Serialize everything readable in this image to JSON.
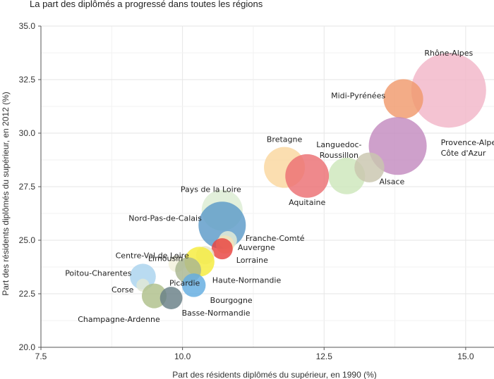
{
  "chart_data": {
    "type": "scatter",
    "title": "La part des diplômés a progressé dans toutes les régions",
    "xlabel": "Part des résidents diplômés du supérieur, en 1990 (%)",
    "ylabel": "Part des résidents diplômés du supérieur, en 2012 (%)",
    "xlim": [
      7.5,
      15.5
    ],
    "ylim": [
      20.0,
      35.0
    ],
    "xticks": [
      "7.5",
      "10.0",
      "12.5",
      "15.0"
    ],
    "yticks": [
      "20.0",
      "22.5",
      "25.0",
      "27.5",
      "30.0",
      "32.5",
      "35.0"
    ],
    "grid": true,
    "highlight_color": "#d62728",
    "points": [
      {
        "name": "Rhône-Alpes",
        "x": 14.7,
        "y": 32.0,
        "size": 100,
        "color": "#f1b6c8"
      },
      {
        "name": "Midi-Pyrénées",
        "x": 13.9,
        "y": 31.6,
        "size": 28,
        "color": "#f09a6c"
      },
      {
        "name": "Provence-Alpes-Côte d'Azur",
        "label_lines": [
          "Provence-Alpes-",
          "Côte d'Azur"
        ],
        "x": 13.8,
        "y": 29.4,
        "size": 60,
        "color": "#c38bbf"
      },
      {
        "name": "Languedoc-Roussillon",
        "label_lines": [
          "Languedoc-",
          "Roussillon"
        ],
        "x": 12.9,
        "y": 28.0,
        "size": 24,
        "color": "#cde6bb"
      },
      {
        "name": "Alsace",
        "x": 13.3,
        "y": 28.4,
        "size": 16,
        "color": "#c9c6ae"
      },
      {
        "name": "Bretagne",
        "x": 11.8,
        "y": 28.4,
        "size": 30,
        "color": "#fad79f"
      },
      {
        "name": "Aquitaine",
        "x": 12.2,
        "y": 28.0,
        "size": 34,
        "color": "#ec6f73"
      },
      {
        "name": "Pays de la Loire",
        "x": 10.7,
        "y": 26.4,
        "size": 30,
        "color": "#dcedd3"
      },
      {
        "name": "Nord-Pas-de-Calais",
        "x": 10.7,
        "y": 25.7,
        "size": 40,
        "color": "#5b9ac8"
      },
      {
        "name": "Franche-Comté",
        "x": 10.8,
        "y": 25.0,
        "size": 6,
        "color": "#e6eed8"
      },
      {
        "name": "Auvergne",
        "x": 10.75,
        "y": 24.8,
        "size": 6,
        "color": "#f4e3b8"
      },
      {
        "name": "Lorraine",
        "x": 10.7,
        "y": 24.6,
        "size": 8,
        "color": "#e8423f",
        "highlight": true
      },
      {
        "name": "Centre-Val de Loire",
        "x": 10.4,
        "y": 24.3,
        "size": 6,
        "color": "#e8e6d0"
      },
      {
        "name": "Limousin",
        "x": 9.9,
        "y": 23.9,
        "size": 5,
        "color": "#f2f0dc"
      },
      {
        "name": "Haute-Normandie",
        "x": 10.3,
        "y": 24.0,
        "size": 16,
        "color": "#f5ec3a"
      },
      {
        "name": "Poitou-Charentes",
        "x": 9.3,
        "y": 23.3,
        "size": 12,
        "color": "#a9d3ee"
      },
      {
        "name": "Picardie",
        "x": 10.1,
        "y": 23.6,
        "size": 12,
        "color": "#a8b690"
      },
      {
        "name": "Bourgogne",
        "x": 10.2,
        "y": 22.9,
        "size": 10,
        "color": "#62ace0"
      },
      {
        "name": "Corse",
        "x": 9.3,
        "y": 22.9,
        "size": 3,
        "color": "#e2e8d6"
      },
      {
        "name": "Champagne-Ardenne",
        "x": 9.5,
        "y": 22.4,
        "size": 11,
        "color": "#aebf8a"
      },
      {
        "name": "Basse-Normandie",
        "x": 9.8,
        "y": 22.3,
        "size": 9,
        "color": "#687f86"
      }
    ]
  }
}
